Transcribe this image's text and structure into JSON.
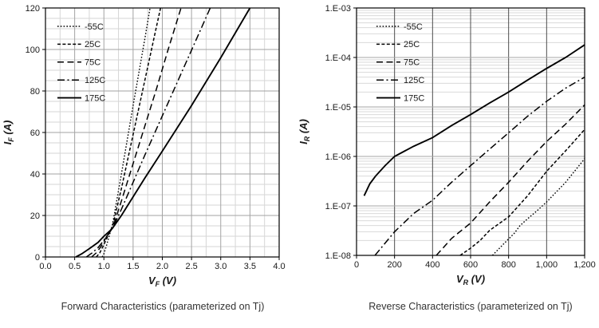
{
  "figure": {
    "background": "#ffffff",
    "line_color": "#000000",
    "text_color": "#1a1a1a"
  },
  "chart_data": [
    {
      "type": "line",
      "caption": "Forward Characteristics (parameterized on Tj)",
      "xlabel": {
        "pre": "V",
        "sub": "F",
        "post": " (V)"
      },
      "ylabel": {
        "pre": "I",
        "sub": "F",
        "post": " (A)"
      },
      "xlim": [
        0,
        4
      ],
      "ylim": [
        0,
        120
      ],
      "yscale": "linear",
      "grid": {
        "x_major_step": 0.5,
        "x_minor_step": 0.25,
        "y_major_step": 20,
        "y_minor_step": 5,
        "major_color": "#a3a3a3",
        "minor_color": "#d6d6d6",
        "x_major_color": "#a3a3a3"
      },
      "x_ticks": [
        {
          "v": 0,
          "label": "0.0"
        },
        {
          "v": 0.5,
          "label": "0.5"
        },
        {
          "v": 1,
          "label": "1.0"
        },
        {
          "v": 1.5,
          "label": "1.5"
        },
        {
          "v": 2,
          "label": "2.0"
        },
        {
          "v": 2.5,
          "label": "2.5"
        },
        {
          "v": 3,
          "label": "3.0"
        },
        {
          "v": 3.5,
          "label": "3.5"
        },
        {
          "v": 4,
          "label": "4.0"
        }
      ],
      "y_ticks": [
        {
          "v": 0,
          "label": "0"
        },
        {
          "v": 20,
          "label": "20"
        },
        {
          "v": 40,
          "label": "40"
        },
        {
          "v": 60,
          "label": "60"
        },
        {
          "v": 80,
          "label": "80"
        },
        {
          "v": 100,
          "label": "100"
        },
        {
          "v": 120,
          "label": "120"
        }
      ],
      "legend_position": "top-left",
      "series": [
        {
          "name": "-55C",
          "style": "dotted",
          "points": [
            [
              0.97,
              0
            ],
            [
              1.0,
              1.5
            ],
            [
              1.05,
              6
            ],
            [
              1.1,
              11
            ],
            [
              1.15,
              16
            ],
            [
              1.3,
              40
            ],
            [
              1.5,
              73
            ],
            [
              1.7,
              105
            ],
            [
              1.79,
              120
            ]
          ]
        },
        {
          "name": "25C",
          "style": "short-dash",
          "points": [
            [
              0.87,
              0
            ],
            [
              0.93,
              2
            ],
            [
              1.0,
              6
            ],
            [
              1.1,
              12
            ],
            [
              1.15,
              15
            ],
            [
              1.3,
              33
            ],
            [
              1.5,
              59
            ],
            [
              1.7,
              85
            ],
            [
              1.9,
              111
            ],
            [
              1.97,
              120
            ]
          ]
        },
        {
          "name": "75C",
          "style": "long-dash",
          "points": [
            [
              0.79,
              0
            ],
            [
              0.87,
              2
            ],
            [
              0.95,
              5
            ],
            [
              1.05,
              10
            ],
            [
              1.15,
              14
            ],
            [
              1.3,
              27
            ],
            [
              1.5,
              45
            ],
            [
              1.7,
              63
            ],
            [
              1.9,
              81
            ],
            [
              2.1,
              100
            ],
            [
              2.32,
              120
            ]
          ]
        },
        {
          "name": "125C",
          "style": "dash-dot",
          "points": [
            [
              0.7,
              0
            ],
            [
              0.8,
              2
            ],
            [
              0.9,
              4.5
            ],
            [
              1.0,
              8
            ],
            [
              1.1,
              12
            ],
            [
              1.15,
              14
            ],
            [
              1.3,
              23
            ],
            [
              1.5,
              36
            ],
            [
              1.7,
              49
            ],
            [
              2.0,
              68
            ],
            [
              2.3,
              87
            ],
            [
              2.6,
              106
            ],
            [
              2.82,
              120
            ]
          ]
        },
        {
          "name": "175C",
          "style": "solid",
          "points": [
            [
              0.52,
              0
            ],
            [
              0.62,
              1.5
            ],
            [
              0.75,
              4
            ],
            [
              0.9,
              7
            ],
            [
              1.0,
              10
            ],
            [
              1.1,
              12.5
            ],
            [
              1.15,
              14
            ],
            [
              1.3,
              20
            ],
            [
              1.5,
              29
            ],
            [
              1.7,
              38
            ],
            [
              2.0,
              51
            ],
            [
              2.5,
              73
            ],
            [
              3.0,
              96
            ],
            [
              3.5,
              120
            ]
          ]
        }
      ]
    },
    {
      "type": "line",
      "caption": "Reverse Characteristics (parameterized on Tj)",
      "xlabel": {
        "pre": "V",
        "sub": "R",
        "post": " (V)"
      },
      "ylabel": {
        "pre": "I",
        "sub": "R",
        "post": " (A)"
      },
      "xlim": [
        0,
        1200
      ],
      "ylim": [
        1e-08,
        0.001
      ],
      "yscale": "log",
      "grid": {
        "x_major_step": 200,
        "x_minor_step": 0,
        "y_log_decades": true,
        "y_log_minors": true,
        "major_color": "#a6a6a6",
        "minor_color": "#d9d9d9",
        "x_major_color": "#4d4d4d"
      },
      "x_ticks": [
        {
          "v": 0,
          "label": "0"
        },
        {
          "v": 200,
          "label": "200"
        },
        {
          "v": 400,
          "label": "400"
        },
        {
          "v": 600,
          "label": "600"
        },
        {
          "v": 800,
          "label": "800"
        },
        {
          "v": 1000,
          "label": "1,000"
        },
        {
          "v": 1200,
          "label": "1,200"
        }
      ],
      "y_ticks": [
        {
          "v": 1e-08,
          "label": "1.E-08"
        },
        {
          "v": 1e-07,
          "label": "1.E-07"
        },
        {
          "v": 1e-06,
          "label": "1.E-06"
        },
        {
          "v": 1e-05,
          "label": "1.E-05"
        },
        {
          "v": 0.0001,
          "label": "1.E-04"
        },
        {
          "v": 0.001,
          "label": "1.E-03"
        }
      ],
      "legend_position": "top-left",
      "series": [
        {
          "name": "-55C",
          "style": "dotted",
          "points": [
            [
              715,
              1e-08
            ],
            [
              780,
              1.8e-08
            ],
            [
              830,
              2.8e-08
            ],
            [
              860,
              4e-08
            ],
            [
              900,
              5.5e-08
            ],
            [
              950,
              8e-08
            ],
            [
              1000,
              1.2e-07
            ],
            [
              1100,
              3e-07
            ],
            [
              1200,
              9e-07
            ]
          ]
        },
        {
          "name": "25C",
          "style": "short-dash",
          "points": [
            [
              545,
              1e-08
            ],
            [
              600,
              1.4e-08
            ],
            [
              650,
              2e-08
            ],
            [
              700,
              3.2e-08
            ],
            [
              800,
              6e-08
            ],
            [
              900,
              1.6e-07
            ],
            [
              1000,
              5e-07
            ],
            [
              1100,
              1.3e-06
            ],
            [
              1200,
              3.5e-06
            ]
          ]
        },
        {
          "name": "75C",
          "style": "long-dash",
          "points": [
            [
              420,
              1e-08
            ],
            [
              500,
              2.2e-08
            ],
            [
              600,
              4.5e-08
            ],
            [
              700,
              1.2e-07
            ],
            [
              800,
              3e-07
            ],
            [
              900,
              8e-07
            ],
            [
              1000,
              2e-06
            ],
            [
              1100,
              4.5e-06
            ],
            [
              1200,
              1.1e-05
            ]
          ]
        },
        {
          "name": "125C",
          "style": "dash-dot",
          "points": [
            [
              97,
              1e-08
            ],
            [
              200,
              3e-08
            ],
            [
              300,
              7e-08
            ],
            [
              400,
              1.3e-07
            ],
            [
              500,
              3e-07
            ],
            [
              600,
              6.5e-07
            ],
            [
              700,
              1.4e-06
            ],
            [
              800,
              3e-06
            ],
            [
              900,
              6.5e-06
            ],
            [
              1000,
              1.3e-05
            ],
            [
              1100,
              2.4e-05
            ],
            [
              1200,
              4e-05
            ]
          ]
        },
        {
          "name": "175C",
          "style": "solid",
          "points": [
            [
              40,
              1.6e-07
            ],
            [
              70,
              2.8e-07
            ],
            [
              100,
              4e-07
            ],
            [
              150,
              6.5e-07
            ],
            [
              200,
              1e-06
            ],
            [
              300,
              1.6e-06
            ],
            [
              400,
              2.4e-06
            ],
            [
              500,
              4.2e-06
            ],
            [
              600,
              7e-06
            ],
            [
              700,
              1.2e-05
            ],
            [
              800,
              2e-05
            ],
            [
              900,
              3.5e-05
            ],
            [
              1000,
              6e-05
            ],
            [
              1100,
              0.0001
            ],
            [
              1200,
              0.00018
            ]
          ]
        }
      ]
    }
  ]
}
